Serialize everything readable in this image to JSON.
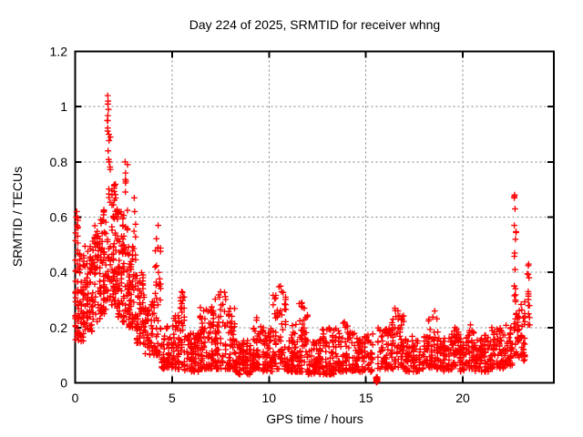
{
  "title": "Day 224 of 2025, SRMTID for receiver whng",
  "x_axis": {
    "label": "GPS time / hours",
    "tick_labels": [
      "0",
      "5",
      "10",
      "15",
      "20"
    ],
    "tick_values": [
      0,
      5,
      10,
      15,
      20
    ]
  },
  "y_axis": {
    "label": "SRMTID / TECUs",
    "tick_labels": [
      "0",
      "0.2",
      "0.4",
      "0.6",
      "0.8",
      "1",
      "1.2"
    ],
    "tick_values": [
      0,
      0.2,
      0.4,
      0.6,
      0.8,
      1.0,
      1.2
    ]
  },
  "colors": {
    "points": "#ff0000",
    "grid": "#808080",
    "axis": "#000000",
    "text": "#000000",
    "background": "#ffffff"
  },
  "chart_data": {
    "type": "scatter",
    "title": "Day 224 of 2025, SRMTID for receiver whng",
    "xlabel": "GPS time / hours",
    "ylabel": "SRMTID / TECUs",
    "xlim": [
      0,
      24.7
    ],
    "ylim": [
      0,
      1.2
    ],
    "grid": true,
    "legend": "none",
    "marker": "plus",
    "marker_size": 7,
    "marker_color": "#ff0000",
    "xticks": [
      0,
      5,
      10,
      15,
      20
    ],
    "yticks": [
      0,
      0.2,
      0.4,
      0.6,
      0.8,
      1.0,
      1.2
    ],
    "seed": 20250224,
    "notable_points": [
      [
        0.05,
        0.6
      ],
      [
        0.08,
        0.62
      ],
      [
        0.1,
        0.57
      ],
      [
        1.66,
        0.95
      ],
      [
        1.68,
        1.04
      ],
      [
        1.7,
        1.02
      ],
      [
        1.72,
        0.99
      ],
      [
        1.74,
        0.9
      ],
      [
        1.7,
        0.84
      ],
      [
        1.76,
        0.8
      ],
      [
        2.58,
        0.8
      ],
      [
        2.6,
        0.76
      ],
      [
        2.62,
        0.73
      ],
      [
        3.05,
        0.67
      ],
      [
        3.07,
        0.62
      ],
      [
        4.28,
        0.57
      ],
      [
        4.3,
        0.4
      ],
      [
        5.5,
        0.33
      ],
      [
        7.5,
        0.33
      ],
      [
        7.45,
        0.31
      ],
      [
        8.0,
        0.27
      ],
      [
        10.6,
        0.35
      ],
      [
        10.65,
        0.33
      ],
      [
        10.3,
        0.25
      ],
      [
        11.7,
        0.29
      ],
      [
        13.9,
        0.22
      ],
      [
        16.5,
        0.27
      ],
      [
        16.55,
        0.24
      ],
      [
        18.55,
        0.26
      ],
      [
        19.6,
        0.2
      ],
      [
        20.4,
        0.21
      ],
      [
        21.5,
        0.2
      ],
      [
        22.68,
        0.68
      ],
      [
        22.7,
        0.63
      ],
      [
        22.66,
        0.57
      ],
      [
        22.72,
        0.52
      ],
      [
        22.68,
        0.47
      ],
      [
        22.7,
        0.41
      ],
      [
        22.66,
        0.35
      ],
      [
        22.72,
        0.3
      ],
      [
        23.4,
        0.43
      ],
      [
        23.42,
        0.38
      ],
      [
        23.38,
        0.33
      ],
      [
        23.44,
        0.28
      ],
      [
        23.4,
        0.25
      ]
    ],
    "density_bands": [
      [
        0.0,
        0.15,
        0.15,
        0.62,
        40,
        1.0
      ],
      [
        0.15,
        0.5,
        0.15,
        0.48,
        55,
        1.2
      ],
      [
        0.5,
        0.9,
        0.18,
        0.5,
        60,
        1.2
      ],
      [
        0.9,
        1.3,
        0.22,
        0.57,
        60,
        1.2
      ],
      [
        1.3,
        1.62,
        0.25,
        0.63,
        55,
        1.2
      ],
      [
        1.62,
        1.85,
        0.3,
        1.05,
        35,
        1.5
      ],
      [
        1.85,
        2.2,
        0.27,
        0.72,
        65,
        1.4
      ],
      [
        2.2,
        2.55,
        0.22,
        0.62,
        65,
        1.3
      ],
      [
        2.55,
        2.72,
        0.25,
        0.8,
        22,
        1.4
      ],
      [
        2.72,
        3.0,
        0.2,
        0.5,
        50,
        1.3
      ],
      [
        3.0,
        3.15,
        0.2,
        0.67,
        18,
        1.4
      ],
      [
        3.15,
        3.6,
        0.14,
        0.4,
        60,
        1.3
      ],
      [
        3.6,
        4.1,
        0.1,
        0.3,
        55,
        1.3
      ],
      [
        4.1,
        4.45,
        0.1,
        0.57,
        38,
        1.8
      ],
      [
        4.45,
        5.0,
        0.05,
        0.22,
        55,
        1.4
      ],
      [
        5.0,
        5.4,
        0.05,
        0.25,
        50,
        1.5
      ],
      [
        5.4,
        5.65,
        0.06,
        0.33,
        30,
        1.6
      ],
      [
        5.65,
        6.4,
        0.04,
        0.18,
        80,
        1.3
      ],
      [
        6.4,
        7.1,
        0.05,
        0.28,
        80,
        1.7
      ],
      [
        7.1,
        7.8,
        0.05,
        0.33,
        75,
        1.8
      ],
      [
        7.8,
        8.25,
        0.05,
        0.28,
        50,
        1.7
      ],
      [
        8.25,
        9.1,
        0.03,
        0.16,
        85,
        1.3
      ],
      [
        9.1,
        9.6,
        0.05,
        0.25,
        55,
        1.6
      ],
      [
        9.6,
        10.2,
        0.04,
        0.2,
        60,
        1.4
      ],
      [
        10.2,
        10.9,
        0.05,
        0.35,
        70,
        1.9
      ],
      [
        10.9,
        11.5,
        0.04,
        0.22,
        60,
        1.4
      ],
      [
        11.5,
        12.0,
        0.04,
        0.29,
        55,
        1.7
      ],
      [
        12.0,
        12.7,
        0.03,
        0.16,
        70,
        1.3
      ],
      [
        12.7,
        13.4,
        0.03,
        0.2,
        70,
        1.6
      ],
      [
        13.4,
        14.3,
        0.04,
        0.22,
        80,
        1.5
      ],
      [
        14.3,
        15.4,
        0.04,
        0.18,
        95,
        1.4
      ],
      [
        15.5,
        15.62,
        0.002,
        0.022,
        26,
        1.0
      ],
      [
        15.62,
        16.3,
        0.05,
        0.2,
        60,
        1.4
      ],
      [
        16.3,
        17.0,
        0.05,
        0.27,
        65,
        1.7
      ],
      [
        17.0,
        18.2,
        0.04,
        0.17,
        95,
        1.3
      ],
      [
        18.2,
        18.75,
        0.05,
        0.26,
        50,
        1.7
      ],
      [
        18.75,
        19.4,
        0.04,
        0.17,
        60,
        1.3
      ],
      [
        19.4,
        19.8,
        0.05,
        0.21,
        40,
        1.5
      ],
      [
        19.8,
        20.25,
        0.04,
        0.17,
        45,
        1.3
      ],
      [
        20.25,
        20.6,
        0.05,
        0.21,
        35,
        1.5
      ],
      [
        20.6,
        21.35,
        0.04,
        0.18,
        70,
        1.4
      ],
      [
        21.35,
        22.2,
        0.05,
        0.2,
        75,
        1.4
      ],
      [
        22.2,
        22.6,
        0.06,
        0.22,
        35,
        1.4
      ],
      [
        22.6,
        22.8,
        0.09,
        0.68,
        20,
        1.2
      ],
      [
        22.8,
        23.25,
        0.08,
        0.3,
        45,
        1.3
      ],
      [
        23.3,
        23.5,
        0.2,
        0.43,
        10,
        1.0
      ]
    ]
  }
}
